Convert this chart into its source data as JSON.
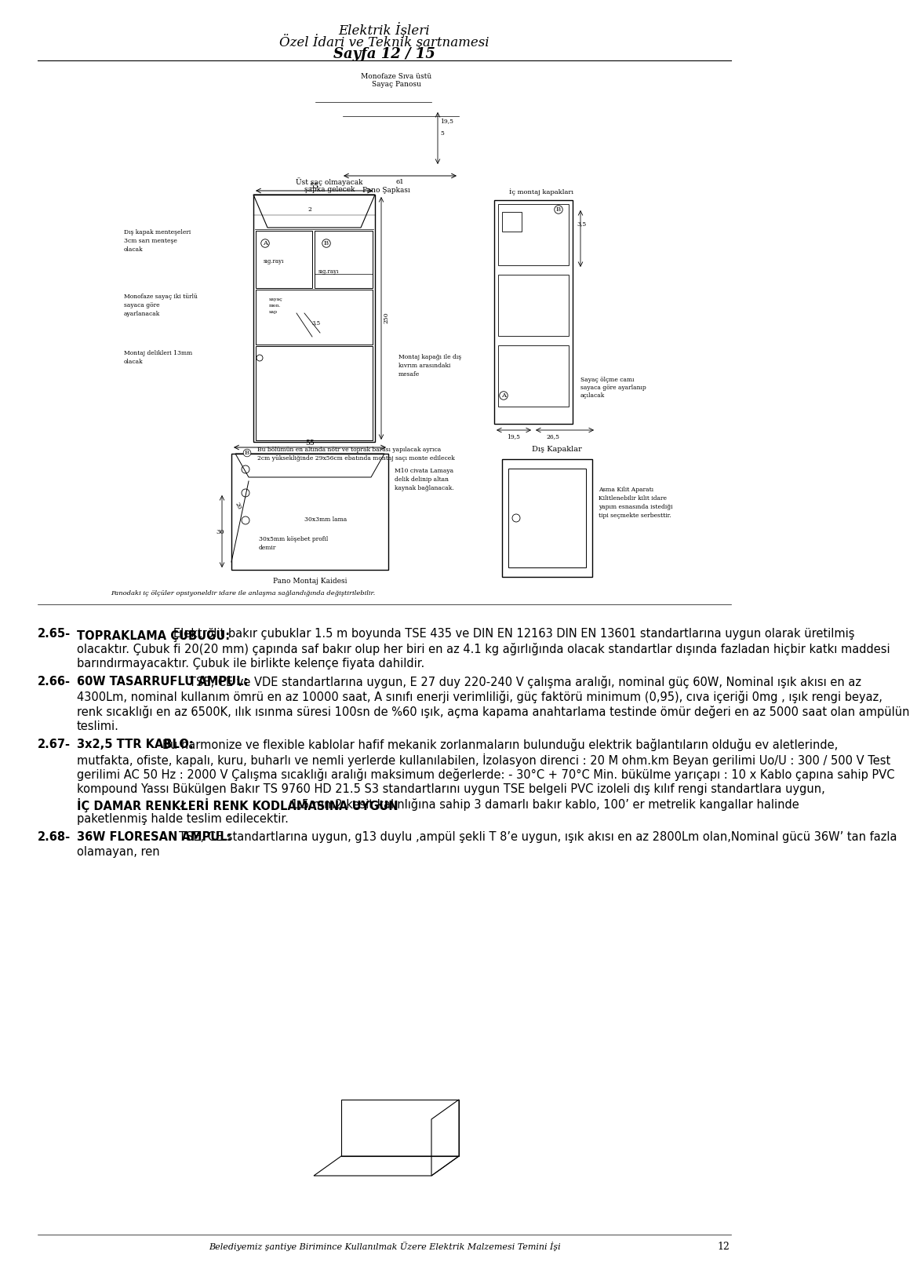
{
  "page_width": 9.6,
  "page_height": 15.93,
  "bg_color": "#ffffff",
  "header_line1": "Elektrik İşleri",
  "header_line2": "Özel İdari ve Teknik şartnamesi",
  "header_line3": "Sayfa 12 / 15",
  "footer_text": "Belediyemiz şantiye Birimince Kullanılmak Üzere Elektrik Malzemesi Temini İşi",
  "footer_page": "12",
  "note_text": "Panodaki iç ölçüler opsiyoneldir idare ile anlaşma sağlandığında değiştirilebilir.",
  "para265_num": "2.65-",
  "para265_bold": "TOPRAKLAMA ÇUBUĞU:",
  "para265_text": " Elektrolit bakır çubuklar 1.5 m boyunda TSE 435 ve DIN EN 12163 DIN EN 13601 standartlarına uygun olarak üretilmiş olacaktır. Çubuk fi 20(20 mm) çapında saf bakır olup her biri en az 4.1 kg ağırlığında olacak standartlar dışında fazladan hiçbir katkı maddesi barındırmayacaktır. Çubuk ile birlikte keleпçe fiyata dahildir.",
  "para266_num": "2.66-",
  "para266_bold": "60W TASARRUFLU AMPUL:",
  "para266_text": " TSE, CE ve VDE standartlarına uygun, E 27 duy 220-240 V çalışma aralığı, nominal güç 60W, Nominal ışık akısı en az 4300Lm, nominal kullanım ömrü en az 10000 saat, A sınıfı enerji verimliliği, güç faktörü minimum (0,95), cıva içeriği 0mg , ışık rengi beyaz, renk sıcaklığı en az 6500K, ılık ısınma süresi 100sn de %60 ışık, açma kapama anahtarlama testinde ömür değeri en az 5000 saat olan ampülün teslimi.",
  "para267_num": "2.67-",
  "para267_bold": "3x2,5 TTR KABLO:",
  "para267_text1": " Bu harmonize ve flexible kablolar hafif mekanik zorlanmaların bulunduğu elektrik bağlantıların olduğu ev aletlerinde, mutfakta, ofiste, kapalı, kuru, buharlı ve nemli yerlerde kullanılabilen, İzolasyon direnci : 20 M ohm.km Beyan gerilimi Uo/U : 300 / 500 V Test gerilimi AC 50 Hz : 2000 V Çalışma sıcaklığı aralığı maksimum değerlerde: - 30°C + 70°C Min. bükülme yarıçapı : 10 x Kablo çapına sahip  PVC kompound Yassı Bükülgen Bakır TS 9760 HD 21.5 S3 standartlarını uygun TSE belgeli PVC izoleli dış kılıf rengi standartlara uygun, ",
  "para267_bold2": "İÇ DAMAR RENKŁERİ RENK KODLAMASINA UYGUN",
  "para267_text2": " 1,5 mm2 kesit kalınlığına sahip 3 damarlı bakır kablo, 100’ er metrelik kangallar halinde paketlenmiş halde teslim edilecektir.",
  "para268_num": "2.68-",
  "para268_bold": "36W FLORESAN AMPUL:",
  "para268_text": " TSE, CE standartlarına uygun, g13 duylu ,ampül şekli T 8’e uygun, ışık akısı en az 2800Lm olan,Nominal gücü 36W’ tan fazla olamayan, ren"
}
